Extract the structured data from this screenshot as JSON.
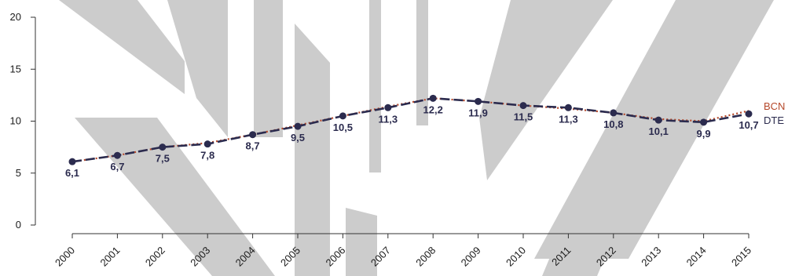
{
  "chart_data": {
    "type": "line",
    "title": "",
    "xlabel": "",
    "ylabel": "",
    "ylim": [
      0,
      20
    ],
    "yticks": [
      0,
      5,
      10,
      15,
      20
    ],
    "categories": [
      "2000",
      "2001",
      "2002",
      "2003",
      "2004",
      "2005",
      "2006",
      "2007",
      "2008",
      "2009",
      "2010",
      "2011",
      "2012",
      "2013",
      "2014",
      "2015"
    ],
    "series": [
      {
        "name": "BCN",
        "color": "#b5482a",
        "style": "dotted",
        "values": [
          6.1,
          6.7,
          7.5,
          7.9,
          8.7,
          9.6,
          10.5,
          11.4,
          12.2,
          11.9,
          11.5,
          11.2,
          10.8,
          10.2,
          10.0,
          11.0
        ]
      },
      {
        "name": "DTE",
        "color": "#2b2b4e",
        "style": "dashed",
        "values": [
          6.1,
          6.7,
          7.5,
          7.8,
          8.7,
          9.5,
          10.5,
          11.3,
          12.2,
          11.9,
          11.5,
          11.3,
          10.8,
          10.1,
          9.9,
          10.7
        ]
      }
    ],
    "data_labels": [
      "6,1",
      "6,7",
      "7,5",
      "7,8",
      "8,7",
      "9,5",
      "10,5",
      "11,3",
      "12,2",
      "11,9",
      "11,5",
      "11,3",
      "10,8",
      "10,1",
      "9,9",
      "10,7"
    ],
    "grid": false,
    "legend": "right-end"
  }
}
